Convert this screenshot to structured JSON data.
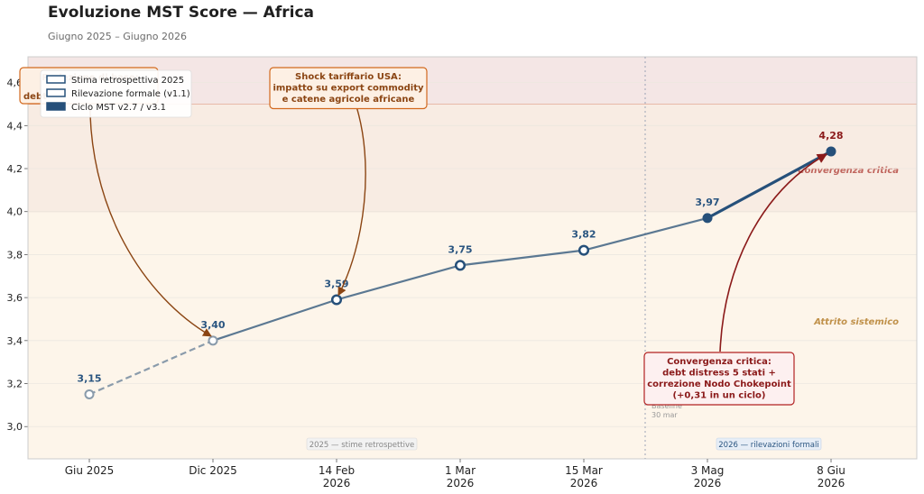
{
  "title": "Evoluzione MST Score — Africa",
  "subtitle": "Giugno 2025 – Giugno 2026",
  "chart_data": {
    "type": "line",
    "ylim": [
      2.85,
      4.72
    ],
    "y_ticks": [
      "3,0",
      "3,2",
      "3,4",
      "3,6",
      "3,8",
      "4,0",
      "4,2",
      "4,4",
      "4,6"
    ],
    "y_tick_values": [
      3.0,
      3.2,
      3.4,
      3.6,
      3.8,
      4.0,
      4.2,
      4.4,
      4.6
    ],
    "categories": [
      "Giu 2025",
      "Dic 2025",
      "14 Feb\n2026",
      "1 Mar\n2026",
      "15 Mar\n2026",
      "3 Mag\n2026",
      "8 Giu\n2026"
    ],
    "values": [
      3.15,
      3.4,
      3.59,
      3.75,
      3.82,
      3.97,
      4.28
    ],
    "value_labels": [
      "3,15",
      "3,40",
      "3,59",
      "3,75",
      "3,82",
      "3,97",
      "4,28"
    ],
    "point_kinds": [
      "estimate",
      "estimate",
      "formal",
      "formal",
      "formal",
      "cycle",
      "cycle"
    ],
    "grid": true,
    "legend_placement": "top-left",
    "legend": [
      {
        "label": "Stima retrospettiva 2025",
        "kind": "estimate"
      },
      {
        "label": "Rilevazione formale (v1.1)",
        "kind": "formal"
      },
      {
        "label": "Ciclo MST v2.7 / v3.1",
        "kind": "cycle"
      }
    ],
    "bands": [
      {
        "from": 2.85,
        "to": 4.0,
        "label": "Attrito sistemico",
        "color": "#fdf5ea",
        "text_color": "#c0914a"
      },
      {
        "from": 4.0,
        "to": 4.5,
        "label": "Convergenza critica",
        "color": "#f8ece3",
        "text_color": "#c0655d"
      },
      {
        "from": 4.5,
        "to": 4.72,
        "label": "",
        "color": "#f4e6e5",
        "text_color": "#c0655d"
      }
    ],
    "baseline_label": "Baseline",
    "baseline_sublabel": "30 mar",
    "period_labels": [
      "2025 — stime retrospettive",
      "2026 — rilevazioni formali"
    ],
    "annotations": [
      {
        "lines": [
          "Shock tariffario USA:",
          "impatto su export commodity",
          "e catene agricole africane"
        ],
        "target_index": 2
      },
      {
        "lines": [
          "Convergenza critica:",
          "debt distress 5 stati +",
          "correzione Nodo Chokepoint",
          "(+0,31 in un ciclo)"
        ],
        "target_index": 6
      },
      {
        "lines": [
          "Proiezione di base:",
          "debt"
        ],
        "target_index": 1
      }
    ],
    "colors": {
      "estimate": "#8a9bab",
      "formal": "#5b7892",
      "cycle": "#26507a",
      "label": "#2a5580",
      "accent_red": "#8b1a1a",
      "accent_brown": "#8b4513"
    }
  }
}
